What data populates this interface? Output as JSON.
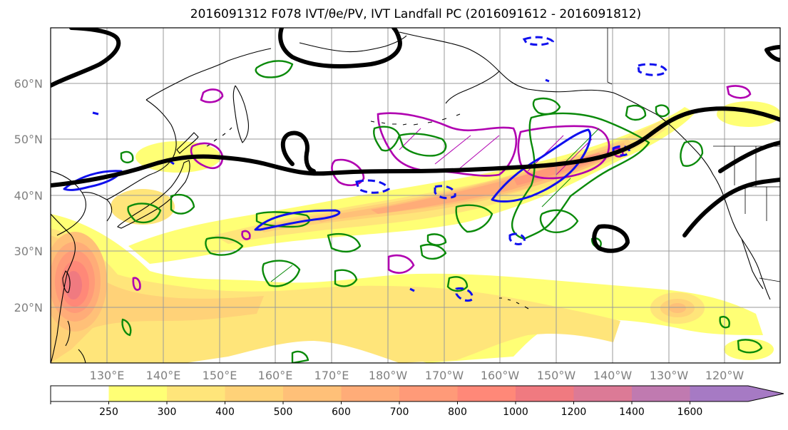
{
  "title": "2016091312 F078 IVT/θe/PV, IVT Landfall PC (2016091612 - 2016091812)",
  "lat_labels": [
    "60°N",
    "50°N",
    "40°N",
    "30°N",
    "20°N"
  ],
  "lon_labels": [
    "130°E",
    "140°E",
    "150°E",
    "160°E",
    "170°E",
    "180°W",
    "170°W",
    "160°W",
    "150°W",
    "140°W",
    "130°W",
    "120°W"
  ],
  "colorbar": {
    "tick_labels": [
      "250",
      "300",
      "400",
      "500",
      "600",
      "700",
      "800",
      "1000",
      "1200",
      "1400",
      "1600"
    ],
    "colors": [
      "#ffff75",
      "#ffe57a",
      "#ffd278",
      "#ffc078",
      "#ffac78",
      "#ff9a78",
      "#ff8878",
      "#f07a80",
      "#dc7a96",
      "#c07ab0",
      "#a67ac4"
    ],
    "extend": "max"
  },
  "map": {
    "extent": {
      "lon_min": 120,
      "lon_max": 248,
      "lat_min": 10,
      "lat_max": 70
    },
    "gridlines": true,
    "line_colors": {
      "heights": "#000000",
      "pv": "#b000b0",
      "theta_e": "#0a8a0a",
      "ivt_pc": "#1010ee"
    }
  }
}
